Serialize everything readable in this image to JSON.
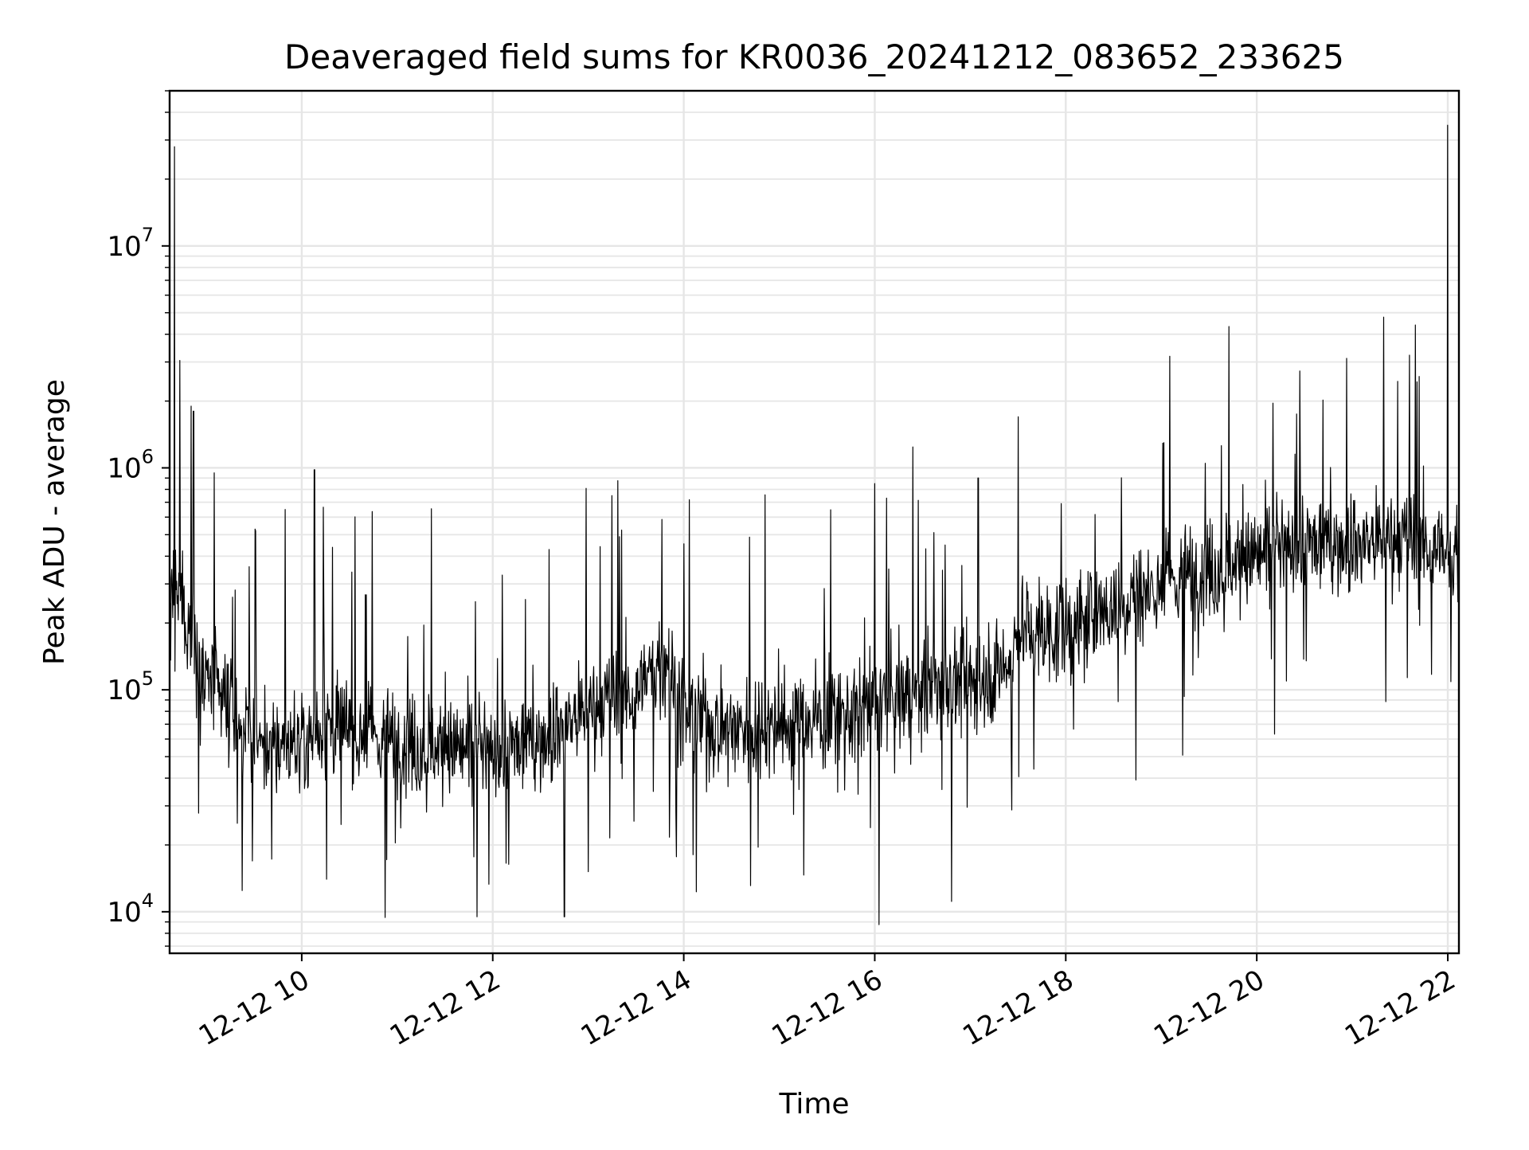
{
  "chart_data": {
    "type": "line",
    "title": "Deaveraged field sums for KR0036_20241212_083652_233625",
    "xlabel": "Time",
    "ylabel": "Peak ADU - average",
    "y_scale": "log",
    "grid": true,
    "grid_minor": true,
    "xlim": [
      "2024-12-12 08:37",
      "2024-12-12 22:07"
    ],
    "ylim": [
      6500,
      50000000
    ],
    "x_ticks": [
      "12-12 10",
      "12-12 12",
      "12-12 14",
      "12-12 16",
      "12-12 18",
      "12-12 20",
      "12-12 22"
    ],
    "y_ticks": [
      {
        "base": "10",
        "exp": "4"
      },
      {
        "base": "10",
        "exp": "5"
      },
      {
        "base": "10",
        "exp": "6"
      },
      {
        "base": "10",
        "exp": "7"
      }
    ],
    "line_color": "#000000",
    "series": [
      {
        "x": [
          "2024-12-12 08:37",
          "2024-12-12 08:40",
          "2024-12-12 08:45",
          "2024-12-12 08:50",
          "2024-12-12 09:00",
          "2024-12-12 09:15",
          "2024-12-12 09:30",
          "2024-12-12 09:45",
          "2024-12-12 10:00",
          "2024-12-12 10:15",
          "2024-12-12 10:30",
          "2024-12-12 11:00",
          "2024-12-12 11:30",
          "2024-12-12 12:00",
          "2024-12-12 12:30",
          "2024-12-12 13:00",
          "2024-12-12 13:30",
          "2024-12-12 13:50",
          "2024-12-12 14:00",
          "2024-12-12 14:30",
          "2024-12-12 15:00",
          "2024-12-12 15:30",
          "2024-12-12 16:00",
          "2024-12-12 16:30",
          "2024-12-12 17:00",
          "2024-12-12 17:25",
          "2024-12-12 17:30",
          "2024-12-12 18:00",
          "2024-12-12 18:30",
          "2024-12-12 19:00",
          "2024-12-12 19:30",
          "2024-12-12 20:00",
          "2024-12-12 20:30",
          "2024-12-12 21:00",
          "2024-12-12 21:30",
          "2024-12-12 21:55",
          "2024-12-12 22:00",
          "2024-12-12 22:07"
        ],
        "y": [
          200000,
          300000,
          250000,
          180000,
          110000,
          80000,
          60000,
          55000,
          60000,
          70000,
          65000,
          58000,
          55000,
          52000,
          60000,
          80000,
          100000,
          140000,
          75000,
          68000,
          70000,
          75000,
          85000,
          100000,
          110000,
          130000,
          190000,
          180000,
          240000,
          300000,
          350000,
          400000,
          450000,
          460000,
          470000,
          450000,
          350000,
          450000
        ],
        "spikes": [
          {
            "x": "2024-12-12 08:40",
            "y": 28000000
          },
          {
            "x": "2024-12-12 08:52",
            "y": 1800000
          },
          {
            "x": "2024-12-12 09:05",
            "y": 950000
          },
          {
            "x": "2024-12-12 10:08",
            "y": 980000
          },
          {
            "x": "2024-12-12 11:50",
            "y": 9500
          },
          {
            "x": "2024-12-12 12:45",
            "y": 9500
          },
          {
            "x": "2024-12-12 13:15",
            "y": 750000
          },
          {
            "x": "2024-12-12 16:00",
            "y": 850000
          },
          {
            "x": "2024-12-12 17:05",
            "y": 900000
          },
          {
            "x": "2024-12-12 17:30",
            "y": 1700000
          },
          {
            "x": "2024-12-12 20:25",
            "y": 1750000
          },
          {
            "x": "2024-12-12 22:00",
            "y": 35000000
          }
        ]
      }
    ]
  }
}
